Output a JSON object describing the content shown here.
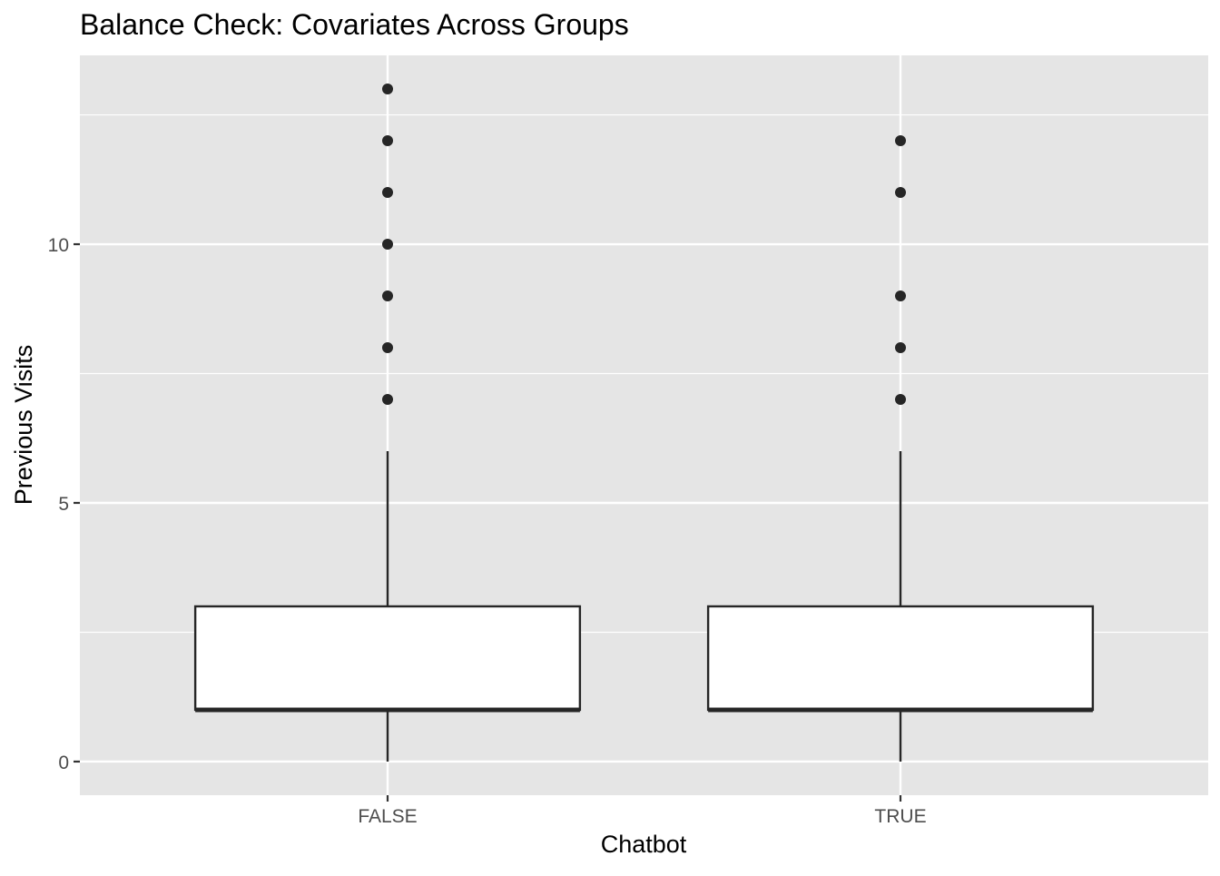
{
  "chart_data": {
    "type": "box",
    "title": "Balance Check: Covariates Across Groups",
    "xlabel": "Chatbot",
    "ylabel": "Previous Visits",
    "categories": [
      "FALSE",
      "TRUE"
    ],
    "y_ticks": [
      0,
      5,
      10
    ],
    "y_tick_labels": [
      "0",
      "5",
      "10"
    ],
    "ylim": [
      -0.65,
      13.65
    ],
    "grid": true,
    "legend": "none",
    "boxes": [
      {
        "category": "FALSE",
        "min": 0,
        "q1": 1,
        "median": 1,
        "q3": 3,
        "max": 6,
        "outliers": [
          7,
          8,
          9,
          10,
          11,
          12,
          13
        ]
      },
      {
        "category": "TRUE",
        "min": 0,
        "q1": 1,
        "median": 1,
        "q3": 3,
        "max": 6,
        "outliers": [
          7,
          8,
          9,
          11,
          12
        ]
      }
    ],
    "colors": {
      "panel_background": "#e5e5e5",
      "grid": "#ffffff",
      "box_fill": "#ffffff",
      "box_stroke": "#262626",
      "outlier": "#262626",
      "axis_text": "#4d4d4d",
      "title_text": "#000000"
    }
  }
}
